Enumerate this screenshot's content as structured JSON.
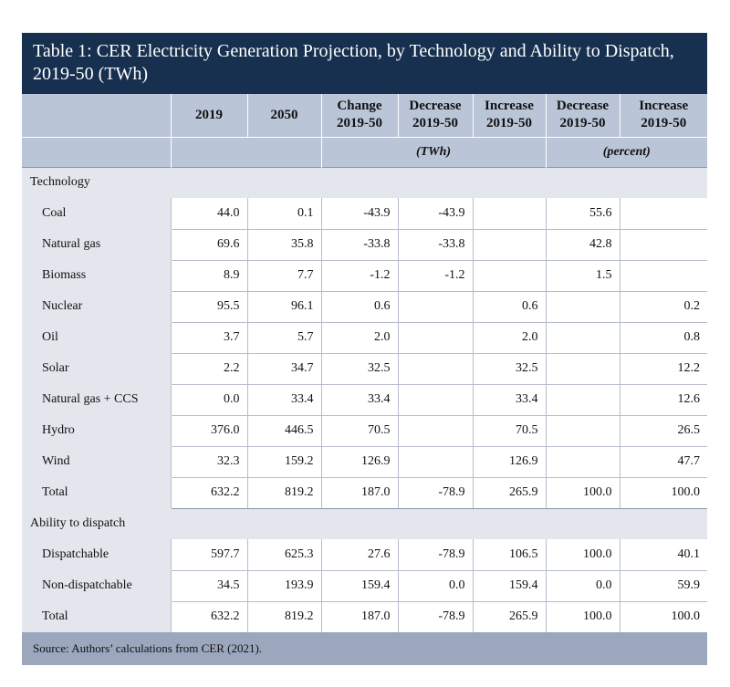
{
  "title": "Table 1: CER Electricity Generation Projection, by Technology and Ability to Dispatch, 2019-50 (TWh)",
  "columns": [
    {
      "line1": "2019",
      "line2": ""
    },
    {
      "line1": "2050",
      "line2": ""
    },
    {
      "line1": "Change",
      "line2": "2019-50"
    },
    {
      "line1": "Decrease",
      "line2": "2019-50"
    },
    {
      "line1": "Increase",
      "line2": "2019-50"
    },
    {
      "line1": "Decrease",
      "line2": "2019-50"
    },
    {
      "line1": "Increase",
      "line2": "2019-50"
    }
  ],
  "units": {
    "twh": "(TWh)",
    "percent": "(percent)"
  },
  "sections": [
    {
      "title": "Technology",
      "rows": [
        {
          "label": "Coal",
          "v": [
            "44.0",
            "0.1",
            "-43.9",
            "-43.9",
            "",
            "55.6",
            ""
          ]
        },
        {
          "label": "Natural gas",
          "v": [
            "69.6",
            "35.8",
            "-33.8",
            "-33.8",
            "",
            "42.8",
            ""
          ]
        },
        {
          "label": "Biomass",
          "v": [
            "8.9",
            "7.7",
            "-1.2",
            "-1.2",
            "",
            "1.5",
            ""
          ]
        },
        {
          "label": "Nuclear",
          "v": [
            "95.5",
            "96.1",
            "0.6",
            "",
            "0.6",
            "",
            "0.2"
          ]
        },
        {
          "label": "Oil",
          "v": [
            "3.7",
            "5.7",
            "2.0",
            "",
            "2.0",
            "",
            "0.8"
          ]
        },
        {
          "label": "Solar",
          "v": [
            "2.2",
            "34.7",
            "32.5",
            "",
            "32.5",
            "",
            "12.2"
          ]
        },
        {
          "label": "Natural gas + CCS",
          "v": [
            "0.0",
            "33.4",
            "33.4",
            "",
            "33.4",
            "",
            "12.6"
          ]
        },
        {
          "label": "Hydro",
          "v": [
            "376.0",
            "446.5",
            "70.5",
            "",
            "70.5",
            "",
            "26.5"
          ]
        },
        {
          "label": "Wind",
          "v": [
            "32.3",
            "159.2",
            "126.9",
            "",
            "126.9",
            "",
            "47.7"
          ]
        },
        {
          "label": "Total",
          "v": [
            "632.2",
            "819.2",
            "187.0",
            "-78.9",
            "265.9",
            "100.0",
            "100.0"
          ]
        }
      ]
    },
    {
      "title": "Ability to dispatch",
      "rows": [
        {
          "label": "Dispatchable",
          "v": [
            "597.7",
            "625.3",
            "27.6",
            "-78.9",
            "106.5",
            "100.0",
            "40.1"
          ]
        },
        {
          "label": "Non-dispatchable",
          "v": [
            "34.5",
            "193.9",
            "159.4",
            "0.0",
            "159.4",
            "0.0",
            "59.9"
          ]
        },
        {
          "label": "Total",
          "v": [
            "632.2",
            "819.2",
            "187.0",
            "-78.9",
            "265.9",
            "100.0",
            "100.0"
          ]
        }
      ]
    }
  ],
  "footer": "Source: Authors’ calculations from CER (2021)."
}
